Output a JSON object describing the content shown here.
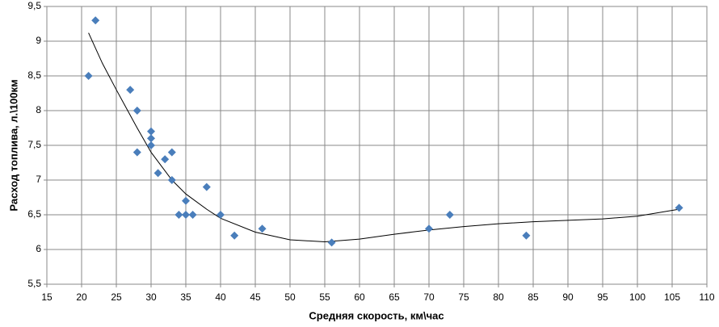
{
  "chart_data": {
    "type": "scatter",
    "x_label": "Средняя скорость, км\\час",
    "y_label": "Расход топлива, л.\\100км",
    "x": [
      21,
      22,
      27,
      28,
      28,
      30,
      30,
      30,
      31,
      32,
      33,
      33,
      34,
      35,
      35,
      36,
      38,
      40,
      42,
      46,
      56,
      70,
      73,
      84,
      106
    ],
    "values": [
      8.5,
      9.3,
      8.3,
      8.0,
      7.4,
      7.7,
      7.6,
      7.5,
      7.1,
      7.3,
      7.4,
      7.0,
      6.5,
      6.7,
      6.5,
      6.5,
      6.9,
      6.5,
      6.2,
      6.3,
      6.1,
      6.3,
      6.5,
      6.2,
      6.6
    ],
    "color": "#4a7ebb",
    "trendline": {
      "color": "#000000",
      "x": [
        21,
        23,
        25,
        28,
        30,
        33,
        35,
        38,
        40,
        45,
        50,
        55,
        60,
        65,
        70,
        75,
        80,
        85,
        90,
        95,
        100,
        106
      ],
      "values": [
        9.12,
        8.68,
        8.3,
        7.75,
        7.4,
        7.0,
        6.8,
        6.58,
        6.45,
        6.25,
        6.14,
        6.11,
        6.15,
        6.22,
        6.28,
        6.33,
        6.37,
        6.4,
        6.42,
        6.44,
        6.48,
        6.58
      ]
    },
    "xlim": [
      15,
      110
    ],
    "xticks": [
      15,
      20,
      25,
      30,
      35,
      40,
      45,
      50,
      55,
      60,
      65,
      70,
      75,
      80,
      85,
      90,
      95,
      100,
      105,
      110
    ],
    "ylim": [
      5.5,
      9.5
    ],
    "yticks": [
      {
        "value": 5.5,
        "label": "5,5"
      },
      6,
      {
        "value": 6.5,
        "label": "6,5"
      },
      7,
      {
        "value": 7.5,
        "label": "7,5"
      },
      8,
      {
        "value": 8.5,
        "label": "8,5"
      },
      9,
      {
        "value": 9.5,
        "label": "9,5"
      }
    ],
    "grid": true
  }
}
